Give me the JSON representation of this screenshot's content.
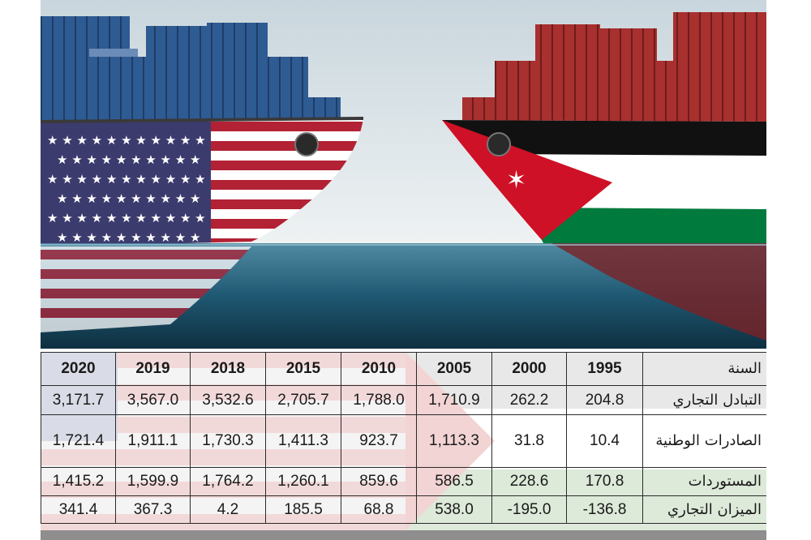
{
  "chart_data": {
    "type": "table",
    "header_label": "السنة",
    "years": [
      "2020",
      "2019",
      "2018",
      "2015",
      "2010",
      "2005",
      "2000",
      "1995"
    ],
    "rows": [
      {
        "label": "التبادل التجاري",
        "values": [
          "3,171.7",
          "3,567.0",
          "3,532.6",
          "2,705.7",
          "1,788.0",
          "1,710.9",
          "262.2",
          "204.8"
        ]
      },
      {
        "label": "الصادرات الوطنية",
        "values": [
          "1,721.4",
          "1,911.1",
          "1,730.3",
          "1,411.3",
          "923.7",
          "1,113.3",
          "31.8",
          "10.4"
        ]
      },
      {
        "label": "المستوردات",
        "values": [
          "1,415.2",
          "1,599.9",
          "1,764.2",
          "1,260.1",
          "859.6",
          "586.5",
          "228.6",
          "170.8"
        ]
      },
      {
        "label": "الميزان التجاري",
        "values": [
          "341.4",
          "367.3",
          "4.2",
          "185.5",
          "68.8",
          "538.0",
          "-195.0",
          "-136.8"
        ]
      }
    ]
  },
  "illustration": {
    "left_ship_flag": "us-flag",
    "right_ship_flag": "jordan-flag"
  },
  "colors": {
    "us_red": "#b22234",
    "us_blue": "#3c3b6e",
    "jordan_red": "#ce1126",
    "jordan_green": "#007a3d",
    "sea": "#1f5872",
    "table_border": "#2b2b2b"
  }
}
